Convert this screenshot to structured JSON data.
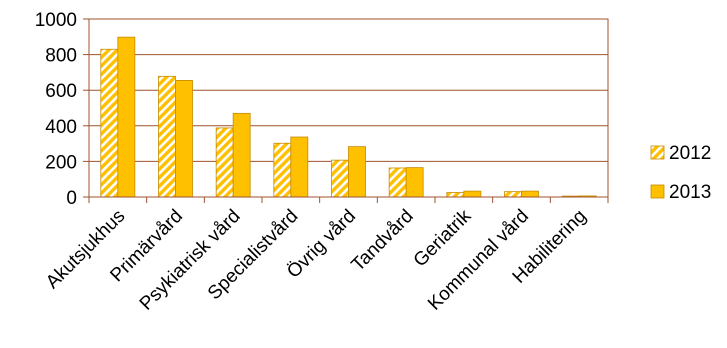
{
  "chart_data": {
    "type": "bar",
    "categories": [
      "Akutsjukhus",
      "Primärvård",
      "Psykiatrisk vård",
      "Specialistvård",
      "Övrig vård",
      "Tandvård",
      "Geriatrik",
      "Kommunal vård",
      "Habilitering"
    ],
    "series": [
      {
        "name": "2012",
        "values": [
          830,
          678,
          388,
          302,
          207,
          163,
          25,
          30,
          5
        ],
        "color": "#FFC000",
        "pattern": "wide-upward-diagonal"
      },
      {
        "name": "2013",
        "values": [
          898,
          655,
          470,
          337,
          283,
          165,
          33,
          33,
          6
        ],
        "color": "#FFC000",
        "pattern": "solid"
      }
    ],
    "yticks": [
      0,
      200,
      400,
      600,
      800,
      1000
    ],
    "ylim": [
      0,
      1000
    ],
    "grid": true,
    "legend_position": "right",
    "colors": {
      "frame": "#A0522D",
      "gridline": "#A0522D",
      "bar_edge": "#C68A00"
    }
  }
}
